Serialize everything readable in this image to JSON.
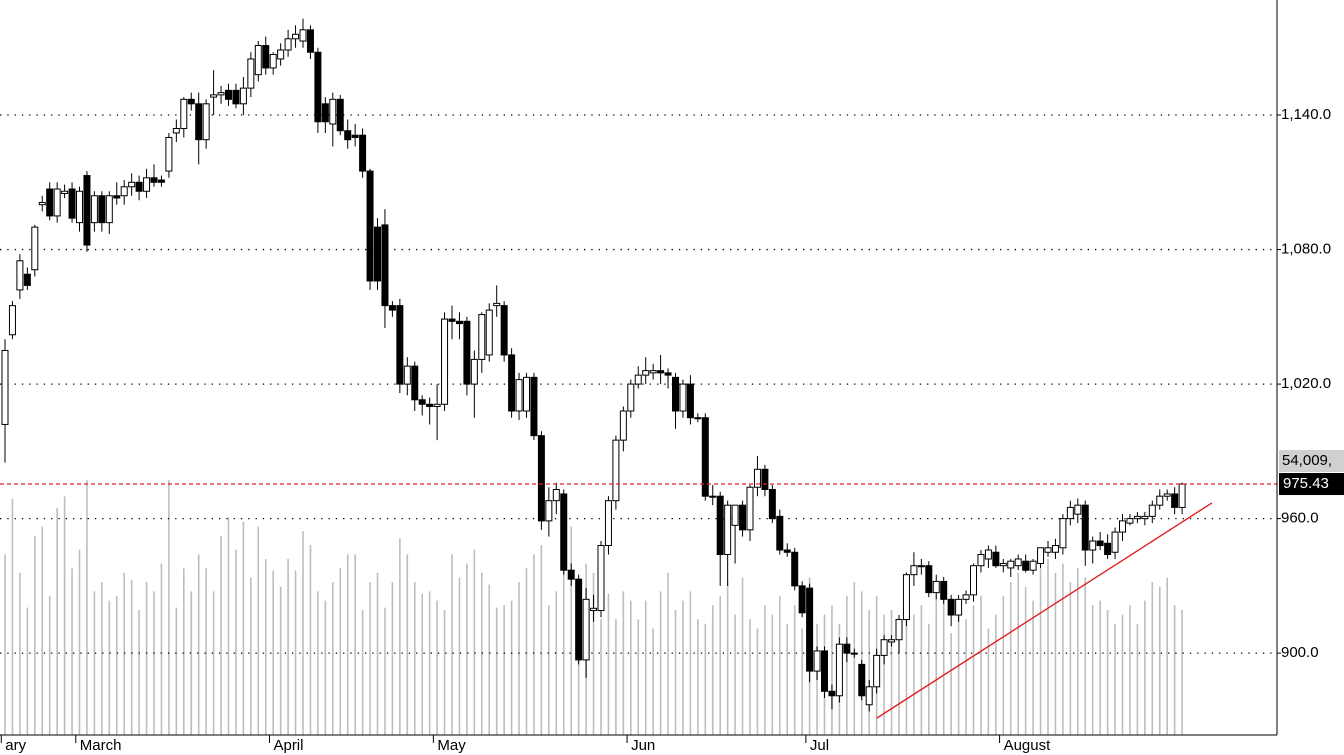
{
  "chart_data": {
    "type": "candlestick",
    "ylim": [
      863.5,
      1191.3
    ],
    "yticks": [
      {
        "value": 900,
        "label": "900.0"
      },
      {
        "value": 960,
        "label": "960.0"
      },
      {
        "value": 1020,
        "label": "1,020.0"
      },
      {
        "value": 1080,
        "label": "1,080.0"
      },
      {
        "value": 1140,
        "label": "1,140.0"
      }
    ],
    "grid": true,
    "up_color": "#ffffff",
    "down_color": "#000000",
    "volume_color": "#bdbdbd",
    "vlim": [
      0,
      136000
    ],
    "months": [
      {
        "index": 0,
        "label": "ary"
      },
      {
        "index": 10,
        "label": "March"
      },
      {
        "index": 36,
        "label": "April"
      },
      {
        "index": 58,
        "label": "May"
      },
      {
        "index": 84,
        "label": "Jun"
      },
      {
        "index": 108,
        "label": "Jul"
      },
      {
        "index": 134,
        "label": "August"
      }
    ],
    "reference_line": {
      "value": 975.43,
      "color": "#e02020"
    },
    "last_volume": {
      "value": 54009,
      "label": "54,009,"
    },
    "trendline": {
      "x": [
        117,
        162
      ],
      "y": [
        871,
        967
      ],
      "color": "#e02020"
    },
    "candles": [
      [
        1002,
        1040,
        985,
        1035
      ],
      [
        1042,
        1057,
        1040,
        1055
      ],
      [
        1062,
        1078,
        1058,
        1075
      ],
      [
        1069,
        1072,
        1062,
        1064
      ],
      [
        1071,
        1091,
        1068,
        1090
      ],
      [
        1100,
        1104,
        1097,
        1101
      ],
      [
        1107,
        1110,
        1093,
        1095
      ],
      [
        1095,
        1110,
        1092,
        1107
      ],
      [
        1105,
        1109,
        1103,
        1106
      ],
      [
        1107,
        1110,
        1092,
        1094
      ],
      [
        1092,
        1108,
        1088,
        1106
      ],
      [
        1113,
        1115,
        1079,
        1082
      ],
      [
        1092,
        1106,
        1088,
        1104
      ],
      [
        1104,
        1106,
        1088,
        1092
      ],
      [
        1092,
        1106,
        1087,
        1104
      ],
      [
        1104,
        1110,
        1100,
        1103
      ],
      [
        1104,
        1111,
        1100,
        1108
      ],
      [
        1108,
        1114,
        1104,
        1110
      ],
      [
        1110,
        1113,
        1102,
        1106
      ],
      [
        1106,
        1116,
        1103,
        1112
      ],
      [
        1112,
        1118,
        1108,
        1110
      ],
      [
        1111,
        1113,
        1108,
        1110
      ],
      [
        1115,
        1132,
        1112,
        1130
      ],
      [
        1132,
        1138,
        1128,
        1134
      ],
      [
        1134,
        1148,
        1130,
        1147
      ],
      [
        1147,
        1150,
        1142,
        1145
      ],
      [
        1145,
        1150,
        1118,
        1129
      ],
      [
        1129,
        1147,
        1125,
        1145
      ],
      [
        1148,
        1160,
        1140,
        1149
      ],
      [
        1149,
        1153,
        1145,
        1150
      ],
      [
        1151,
        1154,
        1144,
        1147
      ],
      [
        1151,
        1154,
        1143,
        1145
      ],
      [
        1145,
        1157,
        1140,
        1152
      ],
      [
        1152,
        1168,
        1148,
        1165
      ],
      [
        1158,
        1173,
        1155,
        1171
      ],
      [
        1171,
        1175,
        1158,
        1161
      ],
      [
        1161,
        1168,
        1158,
        1167
      ],
      [
        1165,
        1172,
        1162,
        1169
      ],
      [
        1169,
        1178,
        1166,
        1174
      ],
      [
        1174,
        1180,
        1170,
        1176
      ],
      [
        1173,
        1183,
        1170,
        1178
      ],
      [
        1178,
        1180,
        1165,
        1168
      ],
      [
        1168,
        1170,
        1132,
        1137
      ],
      [
        1145,
        1148,
        1132,
        1137
      ],
      [
        1136,
        1150,
        1126,
        1147
      ],
      [
        1147,
        1149,
        1131,
        1133
      ],
      [
        1133,
        1138,
        1125,
        1129
      ],
      [
        1131,
        1136,
        1126,
        1130
      ],
      [
        1131,
        1134,
        1112,
        1115
      ],
      [
        1115,
        1116,
        1062,
        1066
      ],
      [
        1090,
        1094,
        1062,
        1066
      ],
      [
        1091,
        1098,
        1045,
        1055
      ],
      [
        1055,
        1057,
        1050,
        1053
      ],
      [
        1055,
        1058,
        1016,
        1020
      ],
      [
        1020,
        1032,
        1015,
        1028
      ],
      [
        1028,
        1030,
        1008,
        1013
      ],
      [
        1013,
        1015,
        1006,
        1011
      ],
      [
        1011,
        1014,
        1002,
        1010
      ],
      [
        1010,
        1020,
        995,
        1011
      ],
      [
        1011,
        1052,
        1008,
        1049
      ],
      [
        1049,
        1055,
        1040,
        1048
      ],
      [
        1048,
        1052,
        1040,
        1047
      ],
      [
        1048,
        1050,
        1015,
        1020
      ],
      [
        1020,
        1035,
        1005,
        1031
      ],
      [
        1031,
        1052,
        1025,
        1051
      ],
      [
        1033,
        1056,
        1030,
        1053
      ],
      [
        1055,
        1064,
        1050,
        1056
      ],
      [
        1055,
        1057,
        1030,
        1033
      ],
      [
        1033,
        1036,
        1005,
        1008
      ],
      [
        1008,
        1025,
        1004,
        1022
      ],
      [
        1008,
        1025,
        1005,
        1023
      ],
      [
        1023,
        1025,
        995,
        997
      ],
      [
        997,
        999,
        955,
        959
      ],
      [
        959,
        974,
        952,
        968
      ],
      [
        968,
        976,
        962,
        973
      ],
      [
        971,
        973,
        935,
        937
      ],
      [
        937,
        940,
        930,
        933
      ],
      [
        933,
        935,
        895,
        897
      ],
      [
        897,
        929,
        889,
        924
      ],
      [
        919,
        926,
        914,
        920
      ],
      [
        919,
        950,
        916,
        948
      ],
      [
        948,
        970,
        944,
        968
      ],
      [
        968,
        997,
        964,
        995
      ],
      [
        995,
        1010,
        990,
        1008
      ],
      [
        1008,
        1022,
        1005,
        1020
      ],
      [
        1020,
        1028,
        1018,
        1024
      ],
      [
        1024,
        1032,
        1020,
        1026
      ],
      [
        1025,
        1029,
        1022,
        1026
      ],
      [
        1026,
        1033,
        1020,
        1025
      ],
      [
        1025,
        1027,
        1018,
        1024
      ],
      [
        1023,
        1025,
        1000,
        1008
      ],
      [
        1008,
        1022,
        1005,
        1020
      ],
      [
        1020,
        1024,
        1002,
        1005
      ],
      [
        1005,
        1007,
        1003,
        1005
      ],
      [
        1005,
        1007,
        968,
        970
      ],
      [
        970,
        975,
        966,
        970
      ],
      [
        970,
        972,
        930,
        944
      ],
      [
        944,
        968,
        930,
        966
      ],
      [
        957,
        966,
        940,
        966
      ],
      [
        966,
        968,
        952,
        955
      ],
      [
        955,
        975,
        950,
        974
      ],
      [
        974,
        988,
        970,
        982
      ],
      [
        982,
        984,
        970,
        973
      ],
      [
        973,
        975,
        958,
        960
      ],
      [
        961,
        964,
        944,
        946
      ],
      [
        946,
        949,
        943,
        945
      ],
      [
        945,
        947,
        928,
        930
      ],
      [
        930,
        932,
        916,
        918
      ],
      [
        929,
        931,
        887,
        892
      ],
      [
        892,
        903,
        888,
        901
      ],
      [
        901,
        903,
        880,
        883
      ],
      [
        883,
        886,
        875,
        881
      ],
      [
        881,
        907,
        878,
        904
      ],
      [
        904,
        907,
        896,
        900
      ],
      [
        900,
        902,
        898,
        900
      ],
      [
        895,
        897,
        879,
        881
      ],
      [
        877,
        888,
        874,
        885
      ],
      [
        885,
        902,
        882,
        899
      ],
      [
        899,
        908,
        895,
        906
      ],
      [
        905,
        908,
        903,
        906
      ],
      [
        906,
        917,
        900,
        915
      ],
      [
        915,
        936,
        912,
        935
      ],
      [
        935,
        945,
        930,
        939
      ],
      [
        939,
        942,
        935,
        939
      ],
      [
        939,
        941,
        925,
        927
      ],
      [
        927,
        935,
        924,
        932
      ],
      [
        932,
        934,
        922,
        924
      ],
      [
        924,
        926,
        912,
        917
      ],
      [
        917,
        926,
        914,
        924
      ],
      [
        924,
        928,
        922,
        926
      ],
      [
        926,
        940,
        923,
        939
      ],
      [
        939,
        946,
        936,
        944
      ],
      [
        942,
        948,
        938,
        946
      ],
      [
        945,
        948,
        938,
        939
      ],
      [
        939,
        942,
        936,
        940
      ],
      [
        938,
        942,
        934,
        941
      ],
      [
        939,
        944,
        937,
        942
      ],
      [
        941,
        944,
        936,
        937
      ],
      [
        937,
        942,
        935,
        941
      ],
      [
        940,
        947,
        938,
        947
      ],
      [
        945,
        950,
        943,
        947
      ],
      [
        945,
        951,
        942,
        948
      ],
      [
        947,
        962,
        944,
        960
      ],
      [
        960,
        968,
        957,
        965
      ],
      [
        962,
        969,
        958,
        966
      ],
      [
        966,
        968,
        939,
        946
      ],
      [
        946,
        952,
        940,
        950
      ],
      [
        950,
        954,
        946,
        948
      ],
      [
        949,
        953,
        942,
        944
      ],
      [
        945,
        956,
        942,
        954
      ],
      [
        954,
        962,
        950,
        959
      ],
      [
        958,
        962,
        957,
        960
      ],
      [
        960,
        963,
        958,
        961
      ],
      [
        960,
        963,
        957,
        961
      ],
      [
        961,
        968,
        958,
        966
      ],
      [
        966,
        973,
        964,
        970
      ],
      [
        970,
        973,
        968,
        971
      ],
      [
        971,
        974,
        962,
        965
      ],
      [
        965,
        976,
        962,
        975.43
      ]
    ],
    "volume": [
      78000,
      102000,
      70000,
      55000,
      86000,
      90000,
      60000,
      98000,
      103000,
      72000,
      80000,
      110000,
      62000,
      66000,
      58000,
      60000,
      70000,
      67000,
      54000,
      66000,
      62000,
      74000,
      110000,
      55000,
      72000,
      62000,
      78000,
      72000,
      62000,
      86000,
      94000,
      80000,
      92000,
      68000,
      90000,
      76000,
      71000,
      64000,
      76000,
      71000,
      88000,
      82000,
      62000,
      58000,
      66000,
      72000,
      78000,
      78000,
      54000,
      66000,
      70000,
      55000,
      66000,
      85000,
      78000,
      66000,
      61000,
      62000,
      58000,
      54000,
      78000,
      68000,
      74000,
      80000,
      70000,
      65000,
      55000,
      56000,
      58000,
      66000,
      72000,
      78000,
      82000,
      56000,
      62000,
      96000,
      90000,
      58000,
      74000,
      70000,
      50000,
      61000,
      50000,
      62000,
      58000,
      50000,
      58000,
      46000,
      62000,
      70000,
      54000,
      58000,
      62000,
      50000,
      48000,
      56000,
      60000,
      66000,
      52000,
      68000,
      50000,
      46000,
      56000,
      52000,
      60000,
      48000,
      56000,
      46000,
      68000,
      48000,
      52000,
      56000,
      48000,
      60000,
      66000,
      62000,
      54000,
      60000,
      52000,
      54000,
      44000,
      62000,
      52000,
      56000,
      48000,
      60000,
      62000,
      44000,
      58000,
      50000,
      56000,
      60000,
      46000,
      52000,
      60000,
      66000,
      70000,
      64000,
      58000,
      72000,
      76000,
      70000,
      74000,
      66000,
      72000,
      68000,
      56000,
      58000,
      54000,
      48000,
      52000,
      56000,
      48000,
      58000,
      66000,
      64000,
      68000,
      56000,
      54009
    ]
  }
}
